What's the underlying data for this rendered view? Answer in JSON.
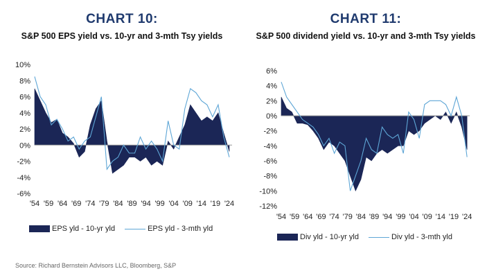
{
  "source": "Source: Richard Bernstein Advisors LLC, Bloomberg, S&P",
  "chart_data": [
    {
      "type": "area",
      "chart_number": "CHART 10:",
      "title": "S&P 500 EPS yield vs. 10-yr and 3-mth Tsy yields",
      "ylim": [
        -6,
        10
      ],
      "yticks": [
        -6,
        -4,
        -2,
        0,
        2,
        4,
        6,
        8,
        10
      ],
      "ytick_labels": [
        "-6%",
        "-4%",
        "-2%",
        "0%",
        "2%",
        "4%",
        "6%",
        "8%",
        "10%"
      ],
      "xlim": [
        1954,
        2025
      ],
      "xticks": [
        1954,
        1959,
        1964,
        1969,
        1974,
        1979,
        1984,
        1989,
        1994,
        1999,
        2004,
        2009,
        2014,
        2019,
        2024
      ],
      "xtick_labels": [
        "'54",
        "'59",
        "'64",
        "'69",
        "'74",
        "'79",
        "'84",
        "'89",
        "'94",
        "'99",
        "'04",
        "'09",
        "'14",
        "'19",
        "'24"
      ],
      "grid": false,
      "legend_position": "bottom",
      "x": [
        1954,
        1956,
        1958,
        1960,
        1962,
        1964,
        1966,
        1968,
        1970,
        1972,
        1974,
        1976,
        1978,
        1980,
        1982,
        1984,
        1986,
        1988,
        1990,
        1992,
        1994,
        1996,
        1998,
        2000,
        2002,
        2004,
        2006,
        2008,
        2010,
        2012,
        2014,
        2016,
        2018,
        2020,
        2022,
        2024
      ],
      "series": [
        {
          "name": "EPS yld - 10-yr yld",
          "style": "area",
          "color": "#1b2656",
          "values": [
            7.0,
            5.5,
            4.0,
            2.8,
            3.2,
            1.5,
            1.0,
            0.2,
            -1.5,
            -0.8,
            2.5,
            4.5,
            5.5,
            0.5,
            -3.5,
            -3.0,
            -2.5,
            -1.5,
            -1.5,
            -2.0,
            -1.5,
            -2.5,
            -2.0,
            -2.5,
            0.5,
            -0.5,
            1.0,
            2.5,
            5.0,
            4.0,
            3.0,
            3.5,
            3.0,
            4.0,
            1.5,
            -0.8
          ]
        },
        {
          "name": "EPS yld - 3-mth yld",
          "style": "line",
          "color": "#5ea6d6",
          "values": [
            8.5,
            6.0,
            5.0,
            2.5,
            3.2,
            2.0,
            0.5,
            1.0,
            -0.5,
            0.5,
            1.0,
            3.5,
            6.0,
            -3.0,
            -2.0,
            -1.5,
            0.0,
            -1.0,
            -1.0,
            1.0,
            -0.5,
            0.5,
            -0.5,
            -2.0,
            3.0,
            0.0,
            -0.5,
            4.5,
            7.0,
            6.5,
            5.5,
            5.0,
            3.5,
            5.0,
            1.0,
            -1.5
          ]
        }
      ]
    },
    {
      "type": "area",
      "chart_number": "CHART 11:",
      "title": "S&P 500 dividend yield vs. 10-yr and 3-mth Tsy yields",
      "ylim": [
        -12,
        6
      ],
      "yticks": [
        -12,
        -10,
        -8,
        -6,
        -4,
        -2,
        0,
        2,
        4,
        6
      ],
      "ytick_labels": [
        "-12%",
        "-10%",
        "-8%",
        "-6%",
        "-4%",
        "-2%",
        "0%",
        "2%",
        "4%",
        "6%"
      ],
      "xlim": [
        1954,
        2025
      ],
      "xticks": [
        1954,
        1959,
        1964,
        1969,
        1974,
        1979,
        1984,
        1989,
        1994,
        1999,
        2004,
        2009,
        2014,
        2019,
        2024
      ],
      "xtick_labels": [
        "'54",
        "'59",
        "'64",
        "'69",
        "'74",
        "'79",
        "'84",
        "'89",
        "'94",
        "'99",
        "'04",
        "'09",
        "'14",
        "'19",
        "'24"
      ],
      "grid": false,
      "legend_position": "bottom",
      "x": [
        1954,
        1956,
        1958,
        1960,
        1962,
        1964,
        1966,
        1968,
        1970,
        1972,
        1974,
        1976,
        1978,
        1980,
        1982,
        1984,
        1986,
        1988,
        1990,
        1992,
        1994,
        1996,
        1998,
        2000,
        2002,
        2004,
        2006,
        2008,
        2010,
        2012,
        2014,
        2016,
        2018,
        2020,
        2022,
        2024
      ],
      "series": [
        {
          "name": "Div yld - 10-yr yld",
          "style": "area",
          "color": "#1b2656",
          "values": [
            2.5,
            1.0,
            0.5,
            -1.0,
            -1.0,
            -1.2,
            -2.0,
            -3.0,
            -4.5,
            -3.5,
            -4.0,
            -5.0,
            -6.0,
            -8.0,
            -10.0,
            -8.5,
            -5.5,
            -6.0,
            -5.0,
            -4.5,
            -5.0,
            -4.5,
            -4.0,
            -4.0,
            -2.0,
            -2.5,
            -2.0,
            -1.0,
            -0.5,
            0.0,
            -0.5,
            0.5,
            -1.0,
            0.5,
            -1.5,
            -4.5
          ]
        },
        {
          "name": "Div yld - 3-mth yld",
          "style": "line",
          "color": "#5ea6d6",
          "values": [
            4.5,
            2.5,
            1.5,
            0.5,
            -0.5,
            -1.0,
            -1.5,
            -2.5,
            -4.0,
            -3.0,
            -5.0,
            -3.5,
            -4.0,
            -10.0,
            -8.0,
            -6.0,
            -3.0,
            -4.5,
            -5.0,
            -1.5,
            -2.5,
            -3.0,
            -2.5,
            -5.0,
            0.5,
            -0.5,
            -3.0,
            1.5,
            2.0,
            2.0,
            2.0,
            1.5,
            0.0,
            2.5,
            0.0,
            -5.5
          ]
        }
      ]
    }
  ]
}
